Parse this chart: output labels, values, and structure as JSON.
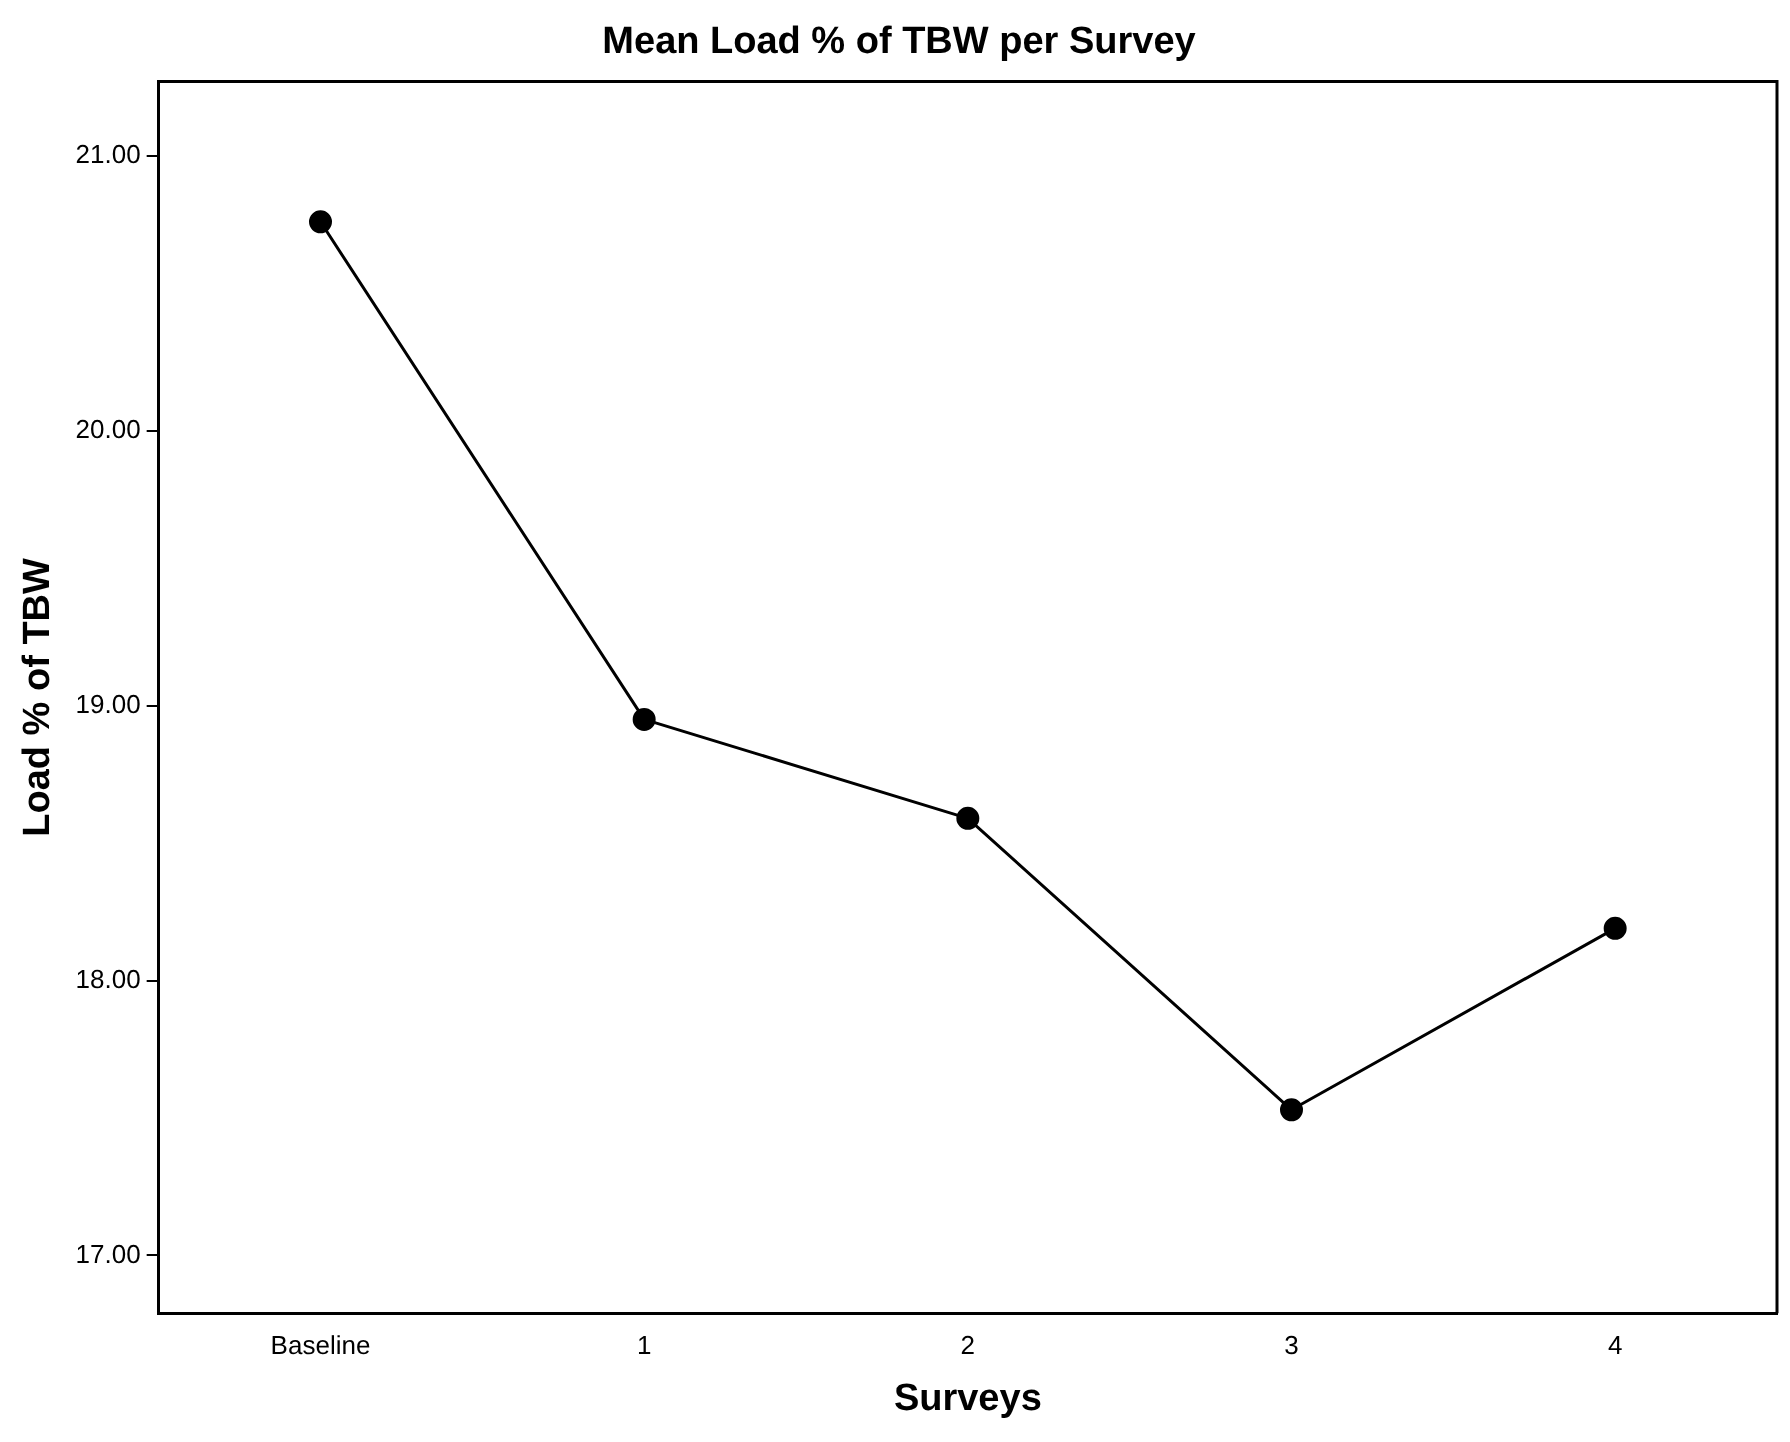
{
  "chart_data": {
    "type": "line",
    "title": "Mean Load % of TBW per Survey",
    "xlabel": "Surveys",
    "ylabel": "Load % of TBW",
    "categories": [
      "Baseline",
      "1",
      "2",
      "3",
      "4"
    ],
    "series": [
      {
        "color": "#000000",
        "values": [
          20.76,
          18.95,
          18.59,
          17.53,
          18.19
        ]
      }
    ],
    "ylim": [
      16.79,
      21.27
    ],
    "yticks": [
      {
        "value": 17,
        "label": "17.00"
      },
      {
        "value": 18,
        "label": "18.00"
      },
      {
        "value": 19,
        "label": "19.00"
      },
      {
        "value": 20,
        "label": "20.00"
      },
      {
        "value": 21,
        "label": "21.00"
      }
    ],
    "grid": false,
    "legend": false,
    "marker": "circle",
    "line_style": "solid"
  }
}
